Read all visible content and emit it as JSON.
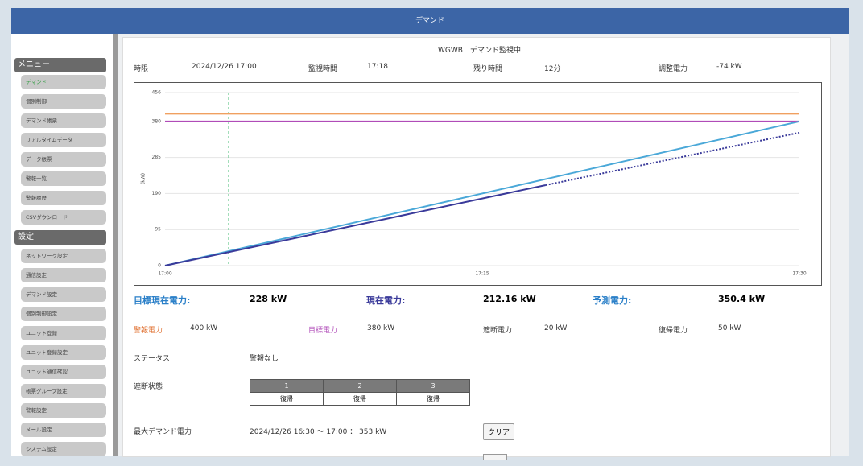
{
  "header": {
    "title": "デマンド"
  },
  "sidebar": {
    "menu": {
      "title": "メニュー",
      "items": [
        "デマンド",
        "個別制御",
        "デマンド帳票",
        "リアルタイムデータ",
        "データ帳票",
        "警報一覧",
        "警報履歴",
        "CSVダウンロード"
      ]
    },
    "settings": {
      "title": "設定",
      "items": [
        "ネットワーク設定",
        "通信設定",
        "デマンド設定",
        "個別制御設定",
        "ユニット登録",
        "ユニット登録設定",
        "ユニット通信確認",
        "帳票グループ設定",
        "警報設定",
        "メール設定",
        "システム設定"
      ]
    }
  },
  "main": {
    "title": "WGWB　デマンド監視中",
    "info": [
      {
        "label": "時限",
        "value": "2024/12/26 17:00"
      },
      {
        "label": "監視時間",
        "value": "17:18"
      },
      {
        "label": "残り時間",
        "value": "12分"
      },
      {
        "label": "調整電力",
        "value": "-74 kW"
      }
    ],
    "summary": [
      {
        "label": "目標現在電力:",
        "value": "228 kW"
      },
      {
        "label": "現在電力:",
        "value": "212.16 kW"
      },
      {
        "label": "予測電力:",
        "value": "350.4 kW"
      }
    ],
    "settings": [
      {
        "label": "警報電力",
        "value": "400 kW"
      },
      {
        "label": "目標電力",
        "value": "380 kW"
      },
      {
        "label": "遮断電力",
        "value": "20 kW"
      },
      {
        "label": "復帰電力",
        "value": "50 kW"
      }
    ],
    "status": {
      "label": "ステータス:",
      "value": "警報なし"
    },
    "cutoff": {
      "label": "遮断状態",
      "headers": [
        "1",
        "2",
        "3"
      ],
      "values": [
        "復帰",
        "復帰",
        "復帰"
      ]
    },
    "max_demand": {
      "label": "最大デマンド電力",
      "value": "2024/12/26 16:30 ～ 17:00 ： 353 kW",
      "button": "クリア"
    }
  },
  "chart_data": {
    "type": "line",
    "ylabel": "(kW)",
    "ylim": [
      0,
      456
    ],
    "yticks": [
      0,
      95,
      190,
      285,
      380,
      456
    ],
    "xlim": [
      "17:00",
      "17:30"
    ],
    "xticks": [
      "17:00",
      "17:15",
      "17:30"
    ],
    "grid": true,
    "vline": {
      "x": "17:03",
      "color": "#7ccf9c"
    },
    "series": [
      {
        "color": "#f0a060",
        "x": [
          "17:00",
          "17:30"
        ],
        "values": [
          400,
          400
        ]
      },
      {
        "color": "#b04cb8",
        "x": [
          "17:00",
          "17:30"
        ],
        "values": [
          380,
          380
        ]
      },
      {
        "color": "#4aa8d8",
        "x": [
          "17:00",
          "17:30"
        ],
        "values": [
          0,
          380
        ]
      },
      {
        "color": "#3a3a9a",
        "x": [
          "17:00",
          "17:18"
        ],
        "values": [
          0,
          212.16
        ]
      },
      {
        "color": "#3a3a9a",
        "style": "dotted",
        "x": [
          "17:18",
          "17:30"
        ],
        "values": [
          212.16,
          350.4
        ]
      }
    ]
  }
}
